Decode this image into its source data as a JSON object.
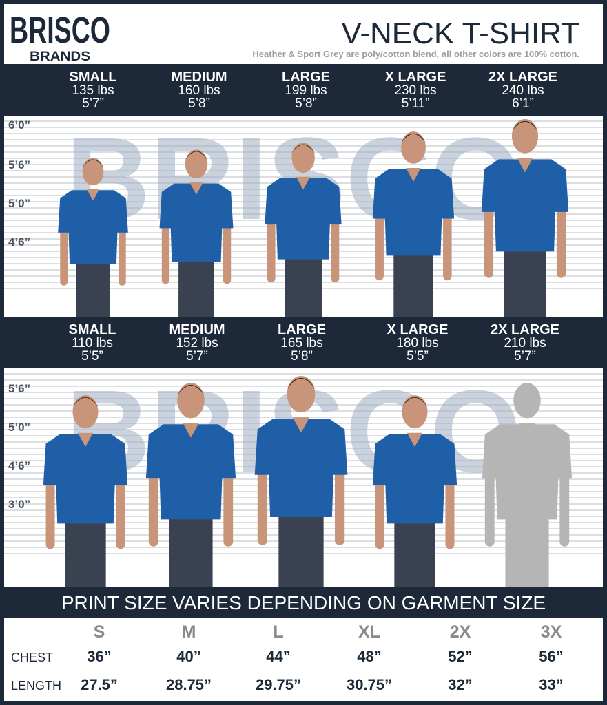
{
  "brand": {
    "name": "BRISCO",
    "sub": "BRANDS"
  },
  "header": {
    "title": "V-NECK T-SHIRT",
    "note": "Heather & Sport Grey are poly/cotton blend, all other colors are 100% cotton."
  },
  "colors": {
    "navy": "#1d2939",
    "shirt": "#1f5fa8",
    "white": "#ffffff"
  },
  "men": {
    "sizes": [
      {
        "name": "SMALL",
        "weight": "135 lbs",
        "height": "5’7”"
      },
      {
        "name": "MEDIUM",
        "weight": "160 lbs",
        "height": "5’8”"
      },
      {
        "name": "LARGE",
        "weight": "199 lbs",
        "height": "5’8”"
      },
      {
        "name": "X LARGE",
        "weight": "230 lbs",
        "height": "5’11”"
      },
      {
        "name": "2X LARGE",
        "weight": "240 lbs",
        "height": "6’1”"
      }
    ],
    "marks": [
      "6’0”",
      "5’6”",
      "5’0”",
      "4’6”"
    ]
  },
  "women": {
    "sizes": [
      {
        "name": "SMALL",
        "weight": "110 lbs",
        "height": "5’5”"
      },
      {
        "name": "MEDIUM",
        "weight": "152 lbs",
        "height": "5’7”"
      },
      {
        "name": "LARGE",
        "weight": "165 lbs",
        "height": "5’8”"
      },
      {
        "name": "X LARGE",
        "weight": "180 lbs",
        "height": "5’5”"
      },
      {
        "name": "2X LARGE",
        "weight": "210 lbs",
        "height": "5’7”"
      }
    ],
    "marks": [
      "5’6”",
      "5’0”",
      "4’6”",
      "3’0”"
    ]
  },
  "banner": "PRINT SIZE VARIES DEPENDING ON GARMENT SIZE",
  "table": {
    "headers": [
      "S",
      "M",
      "L",
      "XL",
      "2X",
      "3X"
    ],
    "rows": [
      {
        "label": "CHEST",
        "values": [
          "36”",
          "40”",
          "44”",
          "48”",
          "52”",
          "56”"
        ]
      },
      {
        "label": "LENGTH",
        "values": [
          "27.5”",
          "28.75”",
          "29.75”",
          "30.75”",
          "32”",
          "33”"
        ]
      }
    ]
  }
}
